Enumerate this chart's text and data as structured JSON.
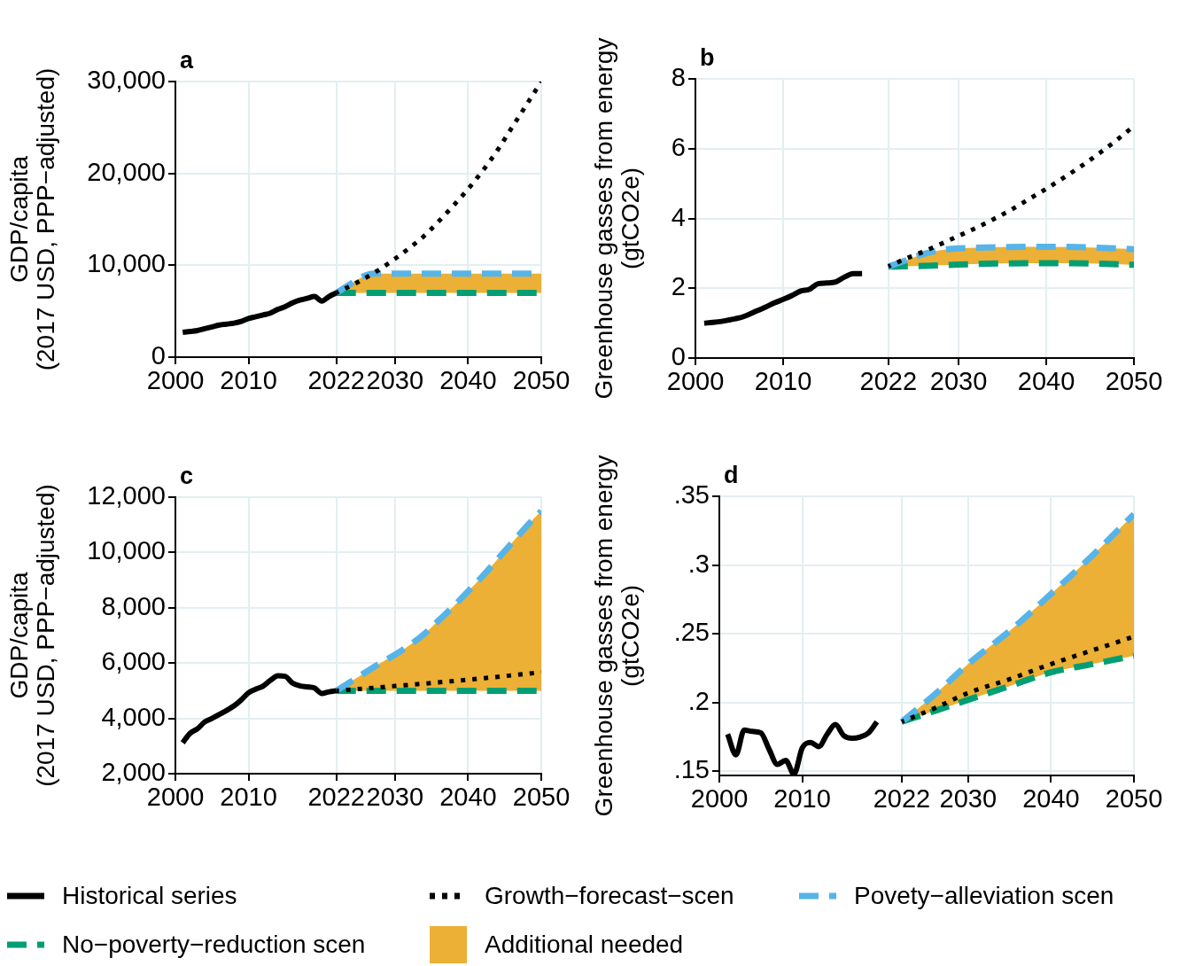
{
  "chart_data": [
    {
      "type": "line",
      "title": "a",
      "ylabel": "GDP/capita\n(2017 USD, PPP−adjusted)",
      "xlim": [
        2000,
        2050
      ],
      "xticks": [
        2000,
        2010,
        2022,
        2030,
        2040,
        2050
      ],
      "ylim": [
        0,
        30000
      ],
      "yticks": [
        0,
        {
          "value": 10000,
          "label": "10,000"
        },
        {
          "value": 20000,
          "label": "20,000"
        },
        {
          "value": 30000,
          "label": "30,000"
        }
      ],
      "grid": true,
      "series": [
        {
          "color": "#000000",
          "line_style": "solid",
          "x": [
            2001,
            2002,
            2003,
            2004,
            2005,
            2006,
            2007,
            2008,
            2009,
            2010,
            2011,
            2012,
            2013,
            2014,
            2015,
            2016,
            2017,
            2018,
            2019,
            2020,
            2021,
            2022
          ],
          "values": [
            2700,
            2800,
            2900,
            3100,
            3300,
            3500,
            3600,
            3700,
            3900,
            4200,
            4400,
            4600,
            4800,
            5200,
            5500,
            5900,
            6200,
            6400,
            6600,
            6100,
            6600,
            7000
          ]
        },
        {
          "color": "#000000",
          "line_style": "dotted",
          "x": [
            2022,
            2025,
            2028,
            2030,
            2032,
            2034,
            2036,
            2038,
            2040,
            2042,
            2044,
            2046,
            2048,
            2050
          ],
          "values": [
            7000,
            8200,
            9600,
            10700,
            11900,
            13200,
            14800,
            16500,
            18300,
            20300,
            22500,
            25000,
            27500,
            30000
          ]
        },
        {
          "color": "#56b4e9",
          "line_style": "dashed",
          "x": [
            2022,
            2023,
            2024,
            2025,
            2026,
            2027,
            2030,
            2035,
            2040,
            2045,
            2050
          ],
          "values": [
            7000,
            7500,
            8000,
            8500,
            8900,
            9100,
            9100,
            9100,
            9100,
            9100,
            9100
          ]
        },
        {
          "color": "#009e73",
          "line_style": "dashed",
          "x": [
            2022,
            2050
          ],
          "values": [
            7000,
            7000
          ]
        },
        {
          "type": "area",
          "color": "#ebb035",
          "x": [
            2022,
            2023,
            2024,
            2025,
            2026,
            2027,
            2030,
            2035,
            2040,
            2045,
            2050
          ],
          "values": [
            null,
            null,
            null,
            null,
            null,
            null,
            null,
            null,
            null,
            null,
            null
          ],
          "lower": [
            7000,
            7000,
            7000,
            7000,
            7000,
            7000,
            7000,
            7000,
            7000,
            7000,
            7000
          ],
          "upper": [
            7000,
            7500,
            8000,
            8500,
            8900,
            9100,
            9100,
            9100,
            9100,
            9100,
            9100
          ]
        }
      ]
    },
    {
      "type": "line",
      "title": "b",
      "ylabel": "Greenhouse gasses from energy\n(gtCO2e)",
      "xlim": [
        2000,
        2050
      ],
      "xticks": [
        2000,
        2010,
        2022,
        2030,
        2040,
        2050
      ],
      "ylim": [
        0,
        8
      ],
      "yticks": [
        0,
        2,
        4,
        6,
        8
      ],
      "grid": true,
      "series": [
        {
          "color": "#000000",
          "line_style": "solid",
          "x": [
            2001,
            2002,
            2003,
            2004,
            2005,
            2006,
            2007,
            2008,
            2009,
            2010,
            2011,
            2012,
            2013,
            2014,
            2015,
            2016,
            2017,
            2018,
            2019
          ],
          "values": [
            1.0,
            1.02,
            1.05,
            1.1,
            1.15,
            1.24,
            1.35,
            1.46,
            1.58,
            1.68,
            1.79,
            1.92,
            1.97,
            2.13,
            2.15,
            2.18,
            2.32,
            2.42,
            2.42
          ]
        },
        {
          "color": "#000000",
          "line_style": "dotted",
          "x": [
            2022,
            2024,
            2026,
            2028,
            2030,
            2032,
            2034,
            2036,
            2038,
            2040,
            2042,
            2044,
            2046,
            2048,
            2050
          ],
          "values": [
            2.62,
            2.85,
            3.05,
            3.27,
            3.5,
            3.73,
            3.98,
            4.25,
            4.55,
            4.85,
            5.17,
            5.5,
            5.86,
            6.24,
            6.65
          ]
        },
        {
          "color": "#56b4e9",
          "line_style": "dashed",
          "x": [
            2022,
            2024,
            2026,
            2028,
            2030,
            2035,
            2040,
            2045,
            2050
          ],
          "values": [
            2.62,
            2.8,
            2.98,
            3.09,
            3.14,
            3.18,
            3.19,
            3.17,
            3.12
          ]
        },
        {
          "color": "#009e73",
          "line_style": "dashed",
          "x": [
            2022,
            2024,
            2026,
            2028,
            2030,
            2035,
            2040,
            2045,
            2050
          ],
          "values": [
            2.62,
            2.63,
            2.64,
            2.66,
            2.68,
            2.71,
            2.72,
            2.71,
            2.67
          ]
        },
        {
          "type": "area",
          "color": "#ebb035",
          "x": [
            2022,
            2024,
            2026,
            2028,
            2030,
            2035,
            2040,
            2045,
            2050
          ],
          "values": [
            null,
            null,
            null,
            null,
            null,
            null,
            null,
            null,
            null
          ],
          "lower": [
            2.62,
            2.63,
            2.64,
            2.66,
            2.68,
            2.71,
            2.72,
            2.71,
            2.67
          ],
          "upper": [
            2.62,
            2.8,
            2.98,
            3.09,
            3.14,
            3.18,
            3.19,
            3.17,
            3.12
          ]
        }
      ]
    },
    {
      "type": "line",
      "title": "c",
      "ylabel": "GDP/capita\n(2017 USD, PPP−adjusted)",
      "xlim": [
        2000,
        2050
      ],
      "xticks": [
        2000,
        2010,
        2022,
        2030,
        2040,
        2050
      ],
      "ylim": [
        2000,
        12000
      ],
      "yticks": [
        {
          "value": 2000,
          "label": "2,000"
        },
        {
          "value": 4000,
          "label": "4,000"
        },
        {
          "value": 6000,
          "label": "6,000"
        },
        {
          "value": 8000,
          "label": "8,000"
        },
        {
          "value": 10000,
          "label": "10,000"
        },
        {
          "value": 12000,
          "label": "12,000"
        }
      ],
      "grid": true,
      "series": [
        {
          "color": "#000000",
          "line_style": "solid",
          "x": [
            2001,
            2002,
            2003,
            2004,
            2005,
            2006,
            2007,
            2008,
            2009,
            2010,
            2011,
            2012,
            2013,
            2014,
            2015,
            2016,
            2017,
            2018,
            2019,
            2020,
            2021,
            2022
          ],
          "values": [
            3120,
            3460,
            3620,
            3870,
            4000,
            4140,
            4290,
            4450,
            4670,
            4930,
            5060,
            5170,
            5380,
            5540,
            5520,
            5280,
            5180,
            5140,
            5100,
            4900,
            4960,
            5000
          ]
        },
        {
          "color": "#000000",
          "line_style": "dotted",
          "x": [
            2022,
            2026,
            2030,
            2035,
            2040,
            2045,
            2050
          ],
          "values": [
            5000,
            5080,
            5170,
            5280,
            5400,
            5530,
            5670
          ]
        },
        {
          "color": "#56b4e9",
          "line_style": "dashed",
          "x": [
            2022,
            2025,
            2028,
            2030,
            2032,
            2034,
            2036,
            2038,
            2040,
            2042,
            2044,
            2046,
            2048,
            2050
          ],
          "values": [
            5000,
            5500,
            6000,
            6300,
            6650,
            7050,
            7550,
            8050,
            8600,
            9150,
            9750,
            10350,
            10950,
            11500
          ]
        },
        {
          "color": "#009e73",
          "line_style": "dashed",
          "x": [
            2022,
            2050
          ],
          "values": [
            5000,
            5000
          ]
        },
        {
          "type": "area",
          "color": "#ebb035",
          "x": [
            2022,
            2025,
            2028,
            2030,
            2032,
            2034,
            2036,
            2038,
            2040,
            2042,
            2044,
            2046,
            2048,
            2050
          ],
          "values": [
            null,
            null,
            null,
            null,
            null,
            null,
            null,
            null,
            null,
            null,
            null,
            null,
            null,
            null
          ],
          "lower": [
            5000,
            5000,
            5000,
            5000,
            5000,
            5000,
            5000,
            5000,
            5000,
            5000,
            5000,
            5000,
            5000,
            5000
          ],
          "upper": [
            5000,
            5500,
            6000,
            6300,
            6650,
            7050,
            7550,
            8050,
            8600,
            9150,
            9750,
            10350,
            10950,
            11500
          ]
        }
      ]
    },
    {
      "type": "line",
      "title": "d",
      "ylabel": "Greenhouse gasses from energy\n(gtCO2e)",
      "xlim": [
        2000,
        2050
      ],
      "xticks": [
        2000,
        2010,
        2022,
        2030,
        2040,
        2050
      ],
      "ylim": [
        0.147,
        0.35
      ],
      "yticks": [
        {
          "value": 0.15,
          "label": ".15"
        },
        {
          "value": 0.2,
          "label": ".2"
        },
        {
          "value": 0.25,
          "label": ".25"
        },
        {
          "value": 0.3,
          "label": ".3"
        },
        {
          "value": 0.35,
          "label": ".35"
        }
      ],
      "grid": true,
      "legend": "bottom",
      "series": [
        {
          "name": "Historical series",
          "color": "#000000",
          "line_style": "solid",
          "x": [
            2001,
            2002,
            2003,
            2004,
            2005,
            2006,
            2007,
            2008,
            2009,
            2010,
            2011,
            2012,
            2013,
            2014,
            2015,
            2016,
            2017,
            2018,
            2019
          ],
          "values": [
            0.177,
            0.162,
            0.18,
            0.179,
            0.178,
            0.166,
            0.155,
            0.158,
            0.148,
            0.167,
            0.171,
            0.168,
            0.177,
            0.184,
            0.176,
            0.174,
            0.175,
            0.178,
            0.186
          ]
        },
        {
          "name": "Growth−forecast−scen",
          "color": "#000000",
          "line_style": "dotted",
          "x": [
            2022,
            2026,
            2030,
            2035,
            2040,
            2045,
            2050
          ],
          "values": [
            0.186,
            0.196,
            0.207,
            0.217,
            0.228,
            0.238,
            0.248
          ]
        },
        {
          "name": "Povety−alleviation scen",
          "color": "#56b4e9",
          "line_style": "dashed",
          "x": [
            2022,
            2026,
            2030,
            2035,
            2040,
            2045,
            2050
          ],
          "values": [
            0.186,
            0.206,
            0.228,
            0.252,
            0.279,
            0.307,
            0.337
          ]
        },
        {
          "name": "No−poverty−reduction scen",
          "color": "#009e73",
          "line_style": "dashed",
          "x": [
            2022,
            2026,
            2030,
            2035,
            2040,
            2045,
            2050
          ],
          "values": [
            0.186,
            0.194,
            0.202,
            0.212,
            0.222,
            0.228,
            0.234
          ]
        },
        {
          "name": "Additional needed",
          "type": "area",
          "color": "#ebb035",
          "x": [
            2022,
            2026,
            2030,
            2035,
            2040,
            2045,
            2050
          ],
          "values": [
            null,
            null,
            null,
            null,
            null,
            null,
            null
          ],
          "lower": [
            0.186,
            0.194,
            0.202,
            0.212,
            0.222,
            0.228,
            0.234
          ],
          "upper": [
            0.186,
            0.206,
            0.228,
            0.252,
            0.279,
            0.307,
            0.337
          ]
        }
      ]
    }
  ]
}
